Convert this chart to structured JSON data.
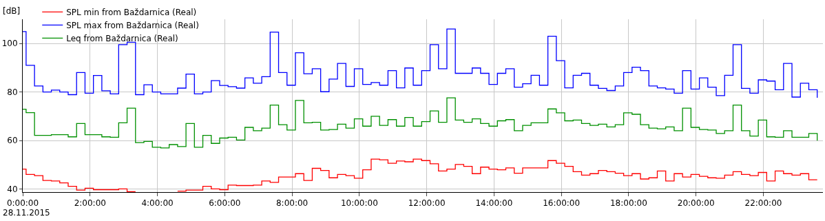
{
  "chart_data": {
    "type": "step",
    "ylabel": "[dB]",
    "x": [
      0,
      0.1,
      0.35,
      0.6,
      0.85,
      1.1,
      1.35,
      1.6,
      1.85,
      2.1,
      2.35,
      2.6,
      2.85,
      3.1,
      3.35,
      3.6,
      3.85,
      4.1,
      4.35,
      4.6,
      4.85,
      5.1,
      5.35,
      5.6,
      5.85,
      6.1,
      6.35,
      6.6,
      6.85,
      7.1,
      7.35,
      7.6,
      7.85,
      8.1,
      8.35,
      8.6,
      8.85,
      9.1,
      9.35,
      9.6,
      9.85,
      10.1,
      10.35,
      10.6,
      10.85,
      11.1,
      11.35,
      11.6,
      11.85,
      12.1,
      12.35,
      12.6,
      12.85,
      13.1,
      13.35,
      13.6,
      13.85,
      14.1,
      14.35,
      14.6,
      14.85,
      15.1,
      15.35,
      15.6,
      15.85,
      16.1,
      16.35,
      16.6,
      16.85,
      17.1,
      17.35,
      17.6,
      17.85,
      18.1,
      18.35,
      18.6,
      18.85,
      19.1,
      19.35,
      19.6,
      19.85,
      20.1,
      20.35,
      20.6,
      20.85,
      21.1,
      21.35,
      21.6,
      21.85,
      22.1,
      22.35,
      22.6,
      22.85,
      23.1,
      23.35,
      23.6
    ],
    "series": [
      {
        "name": "SPL min from Baždarnica (Real)",
        "color": "#ff0000",
        "values": [
          48.2,
          46.0,
          45.5,
          43.5,
          43.3,
          42.5,
          41.1,
          39.5,
          40.3,
          39.7,
          39.7,
          39.7,
          40.0,
          38.9,
          38.9,
          null,
          null,
          null,
          null,
          39.1,
          39.5,
          39.5,
          41.1,
          40.0,
          39.7,
          41.6,
          41.4,
          41.4,
          41.6,
          43.3,
          42.7,
          44.9,
          44.9,
          46.3,
          43.5,
          48.5,
          47.6,
          44.6,
          46.0,
          45.5,
          44.4,
          47.9,
          52.3,
          52.0,
          50.6,
          51.5,
          51.2,
          52.3,
          51.7,
          50.4,
          47.4,
          48.2,
          50.1,
          49.3,
          46.3,
          49.0,
          48.2,
          47.9,
          48.7,
          46.5,
          48.7,
          48.7,
          48.7,
          51.7,
          50.6,
          49.3,
          47.1,
          45.7,
          46.3,
          47.6,
          47.1,
          46.5,
          45.5,
          46.3,
          44.1,
          44.6,
          47.4,
          43.3,
          46.3,
          44.9,
          46.0,
          45.2,
          44.6,
          44.4,
          45.7,
          47.1,
          46.0,
          45.5,
          46.8,
          43.3,
          47.4,
          46.3,
          45.7,
          46.3,
          43.8,
          43.8
        ]
      },
      {
        "name": "SPL max from Baždarnica (Real)",
        "color": "#0000ff",
        "values": [
          104.9,
          91.0,
          82.5,
          80.0,
          80.8,
          80.0,
          78.9,
          88.0,
          79.5,
          86.8,
          80.5,
          79.2,
          99.5,
          100.5,
          78.9,
          83.0,
          80.0,
          79.2,
          79.2,
          81.6,
          87.4,
          79.2,
          80.0,
          84.7,
          82.7,
          82.2,
          81.6,
          85.8,
          83.6,
          86.3,
          104.7,
          88.0,
          82.8,
          96.2,
          87.5,
          89.6,
          80.1,
          85.3,
          91.8,
          82.3,
          89.6,
          83.1,
          83.9,
          82.8,
          88.8,
          81.7,
          89.9,
          82.8,
          88.8,
          99.5,
          89.6,
          106.0,
          87.7,
          87.7,
          89.9,
          87.7,
          83.1,
          87.7,
          89.6,
          82.0,
          83.4,
          86.9,
          82.8,
          103.0,
          92.9,
          81.7,
          86.9,
          87.7,
          82.8,
          81.5,
          80.6,
          82.5,
          88.0,
          90.2,
          88.8,
          82.5,
          81.7,
          81.2,
          79.5,
          88.8,
          81.2,
          85.8,
          82.0,
          78.5,
          86.9,
          99.5,
          81.5,
          79.5,
          85.0,
          84.5,
          80.9,
          91.8,
          77.9,
          83.6,
          80.9,
          77.6
        ]
      },
      {
        "name": "Leq from Baždarnica (Real)",
        "color": "#009000",
        "values": [
          72.9,
          71.5,
          62.1,
          62.1,
          62.4,
          62.4,
          61.5,
          67.0,
          62.4,
          62.4,
          61.5,
          61.3,
          67.3,
          73.3,
          59.1,
          59.6,
          57.2,
          56.9,
          58.3,
          57.5,
          67.0,
          57.2,
          62.1,
          58.8,
          61.0,
          61.3,
          60.2,
          65.4,
          64.0,
          65.1,
          74.6,
          66.5,
          64.3,
          76.5,
          67.3,
          67.5,
          64.3,
          64.5,
          66.7,
          65.1,
          68.9,
          65.9,
          70.0,
          66.2,
          68.6,
          65.9,
          69.5,
          65.9,
          67.8,
          72.2,
          67.5,
          77.6,
          68.4,
          67.5,
          68.9,
          67.0,
          65.9,
          68.1,
          68.6,
          64.0,
          66.2,
          67.3,
          67.3,
          73.0,
          71.4,
          68.1,
          68.4,
          67.0,
          66.2,
          66.7,
          65.6,
          66.5,
          71.4,
          70.8,
          66.5,
          65.1,
          64.8,
          65.6,
          64.0,
          73.3,
          65.4,
          64.5,
          64.3,
          62.9,
          64.0,
          74.6,
          64.0,
          61.8,
          68.4,
          61.5,
          61.3,
          64.0,
          61.3,
          61.3,
          62.9,
          59.9
        ]
      }
    ],
    "xlim": [
      0,
      23.77
    ],
    "xticks": [
      {
        "value": 0,
        "label": "0:00:00"
      },
      {
        "value": 2,
        "label": "2:00:00"
      },
      {
        "value": 4,
        "label": "4:00:00"
      },
      {
        "value": 6,
        "label": "6:00:00"
      },
      {
        "value": 8,
        "label": "8:00:00"
      },
      {
        "value": 10,
        "label": "10:00:00"
      },
      {
        "value": 12,
        "label": "12:00:00"
      },
      {
        "value": 14,
        "label": "14:00:00"
      },
      {
        "value": 16,
        "label": "16:00:00"
      },
      {
        "value": 18,
        "label": "18:00:00"
      },
      {
        "value": 20,
        "label": "20:00:00"
      },
      {
        "value": 22,
        "label": "22:00:00"
      }
    ],
    "ylim": [
      38.7,
      110
    ],
    "yticks": [
      40,
      60,
      80,
      100
    ],
    "grid": true,
    "legend": "top left",
    "annotations": [
      "28.11.2015"
    ]
  }
}
